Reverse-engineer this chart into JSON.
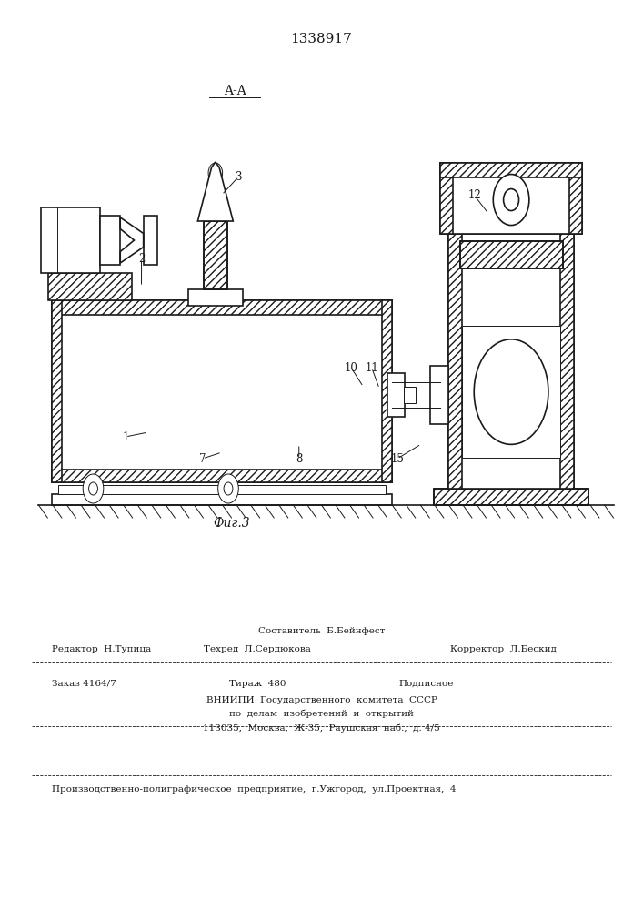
{
  "patent_number": "1338917",
  "fig_label": "Фиг.3",
  "section_label": "A-A",
  "bg_color": "#ffffff",
  "line_color": "#1a1a1a",
  "footer": {
    "sostavitel": "Составитель  Б.Бейнфест",
    "redaktor": "Редактор  Н.Тупица",
    "tehred": "Техред  Л.Сердюкова",
    "korrektor": "Корректор  Л.Бескид",
    "zakaz": "Заказ 4164/7",
    "tirazh": "Тираж  480",
    "podpisnoe": "Подписное",
    "vniipи": "ВНИИПИ  Государственного  комитета  СССР",
    "po_delam": "по  делам  изобретений  и  открытий",
    "address": "113035,  Москва,  Ж-35,  Раушская  наб.,  д. 4/5",
    "proizv": "Производственно-полиграфическое  предприятие,  г.Ужгород,  ул.Проектная,  4"
  }
}
